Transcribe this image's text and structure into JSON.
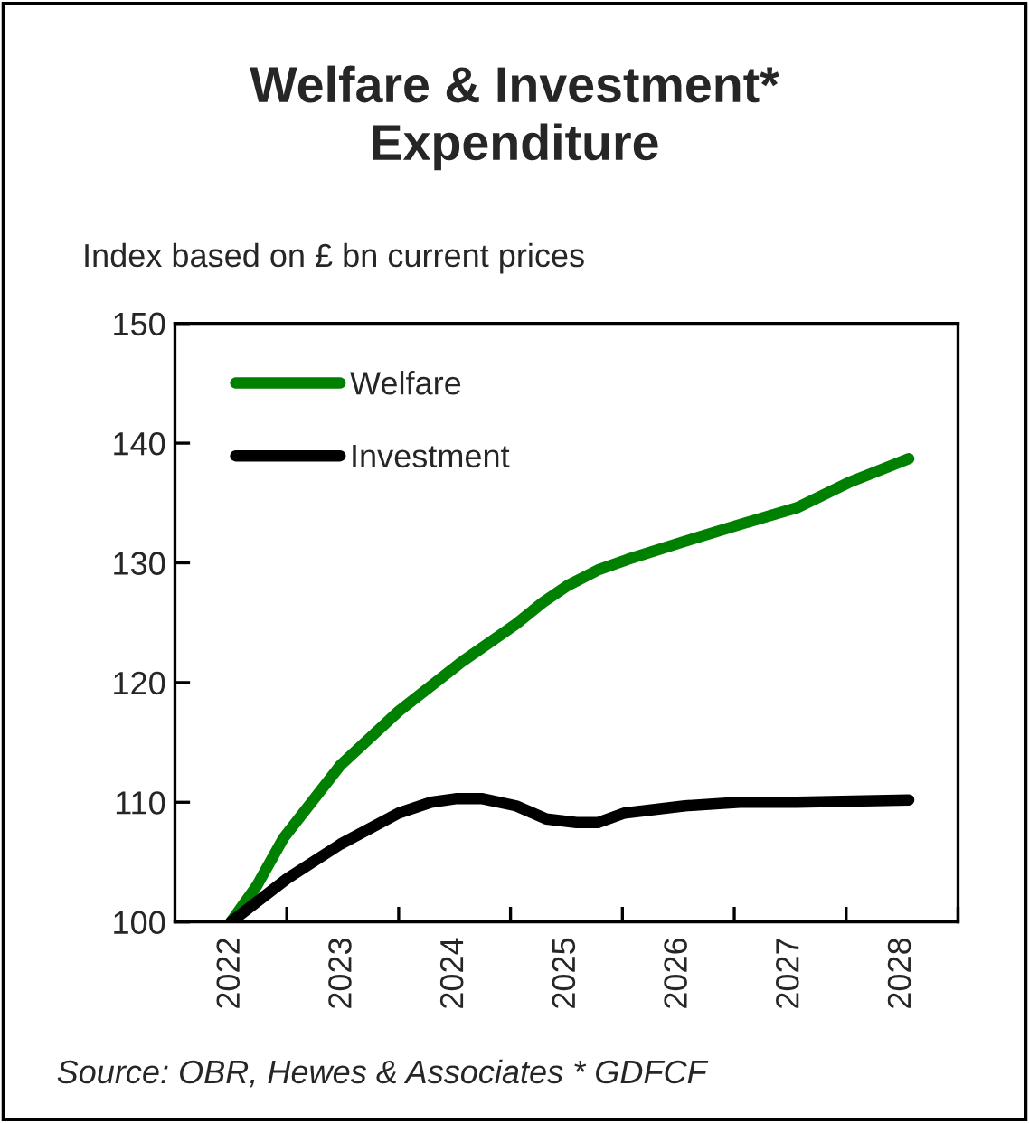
{
  "chart_data": {
    "type": "line",
    "title": "Welfare & Investment*\nExpenditure",
    "ylabel": "Index based on £ bn current prices",
    "annotations": [
      "Source: OBR, Hewes & Associates * GDFCF"
    ],
    "series": [
      {
        "name": "Welfare",
        "color": "#008000",
        "x": [
          2022,
          2022.23,
          2022.47,
          2022.98,
          2023.5,
          2024.06,
          2024.55,
          2024.79,
          2025.01,
          2025.28,
          2025.55,
          2026.06,
          2026.55,
          2027.06,
          2027.52,
          2028.06
        ],
        "values": [
          100,
          103.0,
          107.0,
          113.1,
          117.6,
          121.7,
          124.9,
          126.7,
          128.1,
          129.4,
          130.3,
          131.8,
          133.2,
          134.6,
          136.7,
          138.7
        ]
      },
      {
        "name": "Investment",
        "color": "#000000",
        "x": [
          2022,
          2022.5,
          2022.98,
          2023.5,
          2023.79,
          2024.01,
          2024.25,
          2024.55,
          2024.82,
          2025.09,
          2025.28,
          2025.52,
          2026.06,
          2026.55,
          2027.06,
          2028.06
        ],
        "values": [
          100,
          103.6,
          106.5,
          109.1,
          110.0,
          110.3,
          110.3,
          109.7,
          108.6,
          108.3,
          108.3,
          109.1,
          109.7,
          110.0,
          110.0,
          110.2
        ]
      }
    ],
    "xlim": [
      2021.5,
      2028.5
    ],
    "xticks": [
      2022,
      {
        "value": 2022.5,
        "label": null
      },
      2023,
      {
        "value": 2023.5,
        "label": null
      },
      2024,
      {
        "value": 2024.5,
        "label": null
      },
      2025,
      {
        "value": 2025.5,
        "label": null
      },
      2026,
      {
        "value": 2026.5,
        "label": null
      },
      2027,
      {
        "value": 2027.5,
        "label": null
      },
      2028,
      {
        "value": 2028.5,
        "label": null
      }
    ],
    "ylim": [
      100,
      150
    ],
    "yticks": [
      100,
      110,
      120,
      130,
      140,
      150
    ],
    "grid": false,
    "legend": "top left",
    "line_style": "solid",
    "marker": "none"
  }
}
